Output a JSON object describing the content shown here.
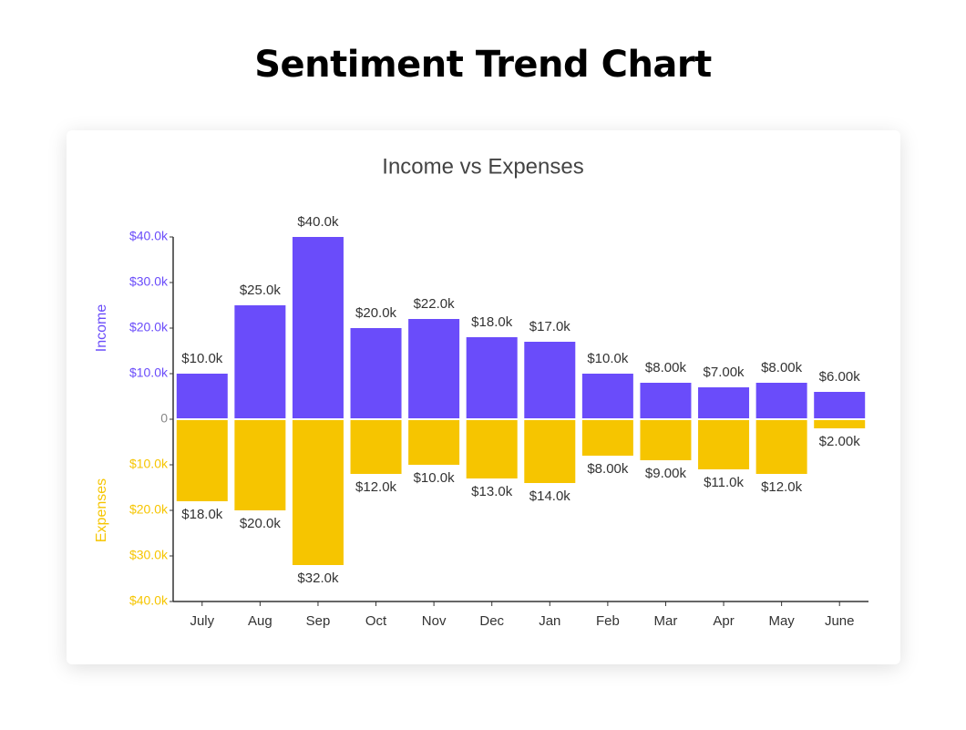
{
  "page_title": "Sentiment Trend Chart",
  "chart_data": {
    "type": "bar",
    "title": "Income vs Expenses",
    "categories": [
      "July",
      "Aug",
      "Sep",
      "Oct",
      "Nov",
      "Dec",
      "Jan",
      "Feb",
      "Mar",
      "Apr",
      "May",
      "June"
    ],
    "series": [
      {
        "name": "Income",
        "color": "#6a4cfa",
        "values": [
          10000,
          25000,
          40000,
          20000,
          22000,
          18000,
          17000,
          10000,
          8000,
          7000,
          8000,
          6000
        ],
        "value_labels": [
          "$10.0k",
          "$25.0k",
          "$40.0k",
          "$20.0k",
          "$22.0k",
          "$18.0k",
          "$17.0k",
          "$10.0k",
          "$8.00k",
          "$7.00k",
          "$8.00k",
          "$6.00k"
        ]
      },
      {
        "name": "Expenses",
        "color": "#f6c500",
        "values": [
          -18000,
          -20000,
          -32000,
          -12000,
          -10000,
          -13000,
          -14000,
          -8000,
          -9000,
          -11000,
          -12000,
          -2000
        ],
        "value_labels": [
          "$18.0k",
          "$20.0k",
          "$32.0k",
          "$12.0k",
          "$10.0k",
          "$13.0k",
          "$14.0k",
          "$8.00k",
          "$9.00k",
          "$11.0k",
          "$12.0k",
          "$2.00k"
        ]
      }
    ],
    "ylim": [
      -40000,
      40000
    ],
    "yticks": [
      {
        "value": -40000,
        "label": "$40.0k"
      },
      {
        "value": -30000,
        "label": "$30.0k"
      },
      {
        "value": -20000,
        "label": "$20.0k"
      },
      {
        "value": -10000,
        "label": "$10.0k"
      },
      0,
      {
        "value": 10000,
        "label": "$10.0k"
      },
      {
        "value": 20000,
        "label": "$20.0k"
      },
      {
        "value": 30000,
        "label": "$30.0k"
      },
      {
        "value": 40000,
        "label": "$40.0k"
      }
    ],
    "grid": false
  }
}
